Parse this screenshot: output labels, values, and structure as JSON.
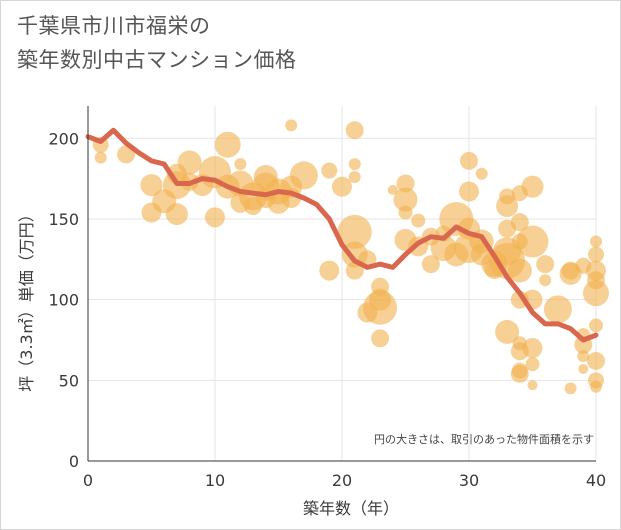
{
  "title_line1": "千葉県市川市福栄の",
  "title_line2": "築年数別中古マンション価格",
  "chart_data": {
    "type": "scatter",
    "title": "千葉県市川市福栄の築年数別中古マンション価格",
    "xlabel": "築年数（年）",
    "ylabel": "坪（3.3㎡）単価（万円）",
    "note": "円の大きさは、取引のあった物件面積を示す",
    "xlim": [
      0,
      40
    ],
    "ylim": [
      0,
      220
    ],
    "xticks": [
      0,
      10,
      20,
      30,
      40
    ],
    "yticks": [
      0,
      50,
      100,
      150,
      200
    ],
    "bubble_color": "#f2b14e",
    "line_color": "#d9674e",
    "bubbles": [
      {
        "x": 1,
        "y": 196,
        "s": 8
      },
      {
        "x": 1,
        "y": 188,
        "s": 6
      },
      {
        "x": 3,
        "y": 190,
        "s": 9
      },
      {
        "x": 5,
        "y": 171,
        "s": 11
      },
      {
        "x": 5,
        "y": 154,
        "s": 10
      },
      {
        "x": 6,
        "y": 161,
        "s": 12
      },
      {
        "x": 7,
        "y": 178,
        "s": 10
      },
      {
        "x": 7,
        "y": 171,
        "s": 14
      },
      {
        "x": 7,
        "y": 153,
        "s": 11
      },
      {
        "x": 8,
        "y": 185,
        "s": 12
      },
      {
        "x": 8,
        "y": 173,
        "s": 9
      },
      {
        "x": 9,
        "y": 171,
        "s": 11
      },
      {
        "x": 10,
        "y": 179,
        "s": 16
      },
      {
        "x": 10,
        "y": 151,
        "s": 10
      },
      {
        "x": 11,
        "y": 196,
        "s": 13
      },
      {
        "x": 11,
        "y": 170,
        "s": 12
      },
      {
        "x": 12,
        "y": 184,
        "s": 6
      },
      {
        "x": 12,
        "y": 172,
        "s": 13
      },
      {
        "x": 12,
        "y": 160,
        "s": 10
      },
      {
        "x": 13,
        "y": 164,
        "s": 14
      },
      {
        "x": 13,
        "y": 158,
        "s": 9
      },
      {
        "x": 14,
        "y": 176,
        "s": 12
      },
      {
        "x": 14,
        "y": 170,
        "s": 14
      },
      {
        "x": 14,
        "y": 163,
        "s": 10
      },
      {
        "x": 15,
        "y": 167,
        "s": 13
      },
      {
        "x": 15,
        "y": 160,
        "s": 11
      },
      {
        "x": 16,
        "y": 208,
        "s": 6
      },
      {
        "x": 16,
        "y": 170,
        "s": 11
      },
      {
        "x": 16,
        "y": 163,
        "s": 10
      },
      {
        "x": 17,
        "y": 177,
        "s": 14
      },
      {
        "x": 19,
        "y": 180,
        "s": 8
      },
      {
        "x": 19,
        "y": 118,
        "s": 10
      },
      {
        "x": 20,
        "y": 170,
        "s": 10
      },
      {
        "x": 21,
        "y": 205,
        "s": 9
      },
      {
        "x": 21,
        "y": 184,
        "s": 6
      },
      {
        "x": 21,
        "y": 176,
        "s": 6
      },
      {
        "x": 21,
        "y": 142,
        "s": 17
      },
      {
        "x": 21,
        "y": 128,
        "s": 13
      },
      {
        "x": 21,
        "y": 118,
        "s": 9
      },
      {
        "x": 22,
        "y": 125,
        "s": 9
      },
      {
        "x": 22,
        "y": 92,
        "s": 10
      },
      {
        "x": 23,
        "y": 108,
        "s": 9
      },
      {
        "x": 23,
        "y": 100,
        "s": 11
      },
      {
        "x": 23,
        "y": 95,
        "s": 17
      },
      {
        "x": 23,
        "y": 76,
        "s": 9
      },
      {
        "x": 24,
        "y": 168,
        "s": 5
      },
      {
        "x": 25,
        "y": 172,
        "s": 9
      },
      {
        "x": 25,
        "y": 162,
        "s": 12
      },
      {
        "x": 25,
        "y": 154,
        "s": 7
      },
      {
        "x": 25,
        "y": 137,
        "s": 11
      },
      {
        "x": 26,
        "y": 149,
        "s": 7
      },
      {
        "x": 26,
        "y": 133,
        "s": 10
      },
      {
        "x": 27,
        "y": 139,
        "s": 9
      },
      {
        "x": 27,
        "y": 122,
        "s": 9
      },
      {
        "x": 28,
        "y": 141,
        "s": 8
      },
      {
        "x": 28,
        "y": 132,
        "s": 13
      },
      {
        "x": 29,
        "y": 150,
        "s": 17
      },
      {
        "x": 29,
        "y": 128,
        "s": 12
      },
      {
        "x": 30,
        "y": 186,
        "s": 9
      },
      {
        "x": 30,
        "y": 167,
        "s": 10
      },
      {
        "x": 30,
        "y": 144,
        "s": 11
      },
      {
        "x": 30,
        "y": 132,
        "s": 15
      },
      {
        "x": 31,
        "y": 178,
        "s": 6
      },
      {
        "x": 31,
        "y": 136,
        "s": 12
      },
      {
        "x": 31,
        "y": 128,
        "s": 11
      },
      {
        "x": 32,
        "y": 122,
        "s": 13
      },
      {
        "x": 32,
        "y": 119,
        "s": 10
      },
      {
        "x": 33,
        "y": 164,
        "s": 8
      },
      {
        "x": 33,
        "y": 158,
        "s": 11
      },
      {
        "x": 33,
        "y": 144,
        "s": 9
      },
      {
        "x": 33,
        "y": 130,
        "s": 14
      },
      {
        "x": 33,
        "y": 124,
        "s": 18
      },
      {
        "x": 33,
        "y": 80,
        "s": 12
      },
      {
        "x": 34,
        "y": 166,
        "s": 8
      },
      {
        "x": 34,
        "y": 148,
        "s": 9
      },
      {
        "x": 34,
        "y": 136,
        "s": 8
      },
      {
        "x": 34,
        "y": 118,
        "s": 12
      },
      {
        "x": 34,
        "y": 100,
        "s": 9
      },
      {
        "x": 34,
        "y": 73,
        "s": 7
      },
      {
        "x": 34,
        "y": 68,
        "s": 9
      },
      {
        "x": 34,
        "y": 56,
        "s": 8
      },
      {
        "x": 34,
        "y": 54,
        "s": 9
      },
      {
        "x": 35,
        "y": 170,
        "s": 11
      },
      {
        "x": 35,
        "y": 136,
        "s": 16
      },
      {
        "x": 35,
        "y": 100,
        "s": 10
      },
      {
        "x": 35,
        "y": 70,
        "s": 10
      },
      {
        "x": 35,
        "y": 60,
        "s": 7
      },
      {
        "x": 35,
        "y": 47,
        "s": 5
      },
      {
        "x": 36,
        "y": 122,
        "s": 9
      },
      {
        "x": 36,
        "y": 112,
        "s": 6
      },
      {
        "x": 37,
        "y": 94,
        "s": 14
      },
      {
        "x": 38,
        "y": 118,
        "s": 9
      },
      {
        "x": 38,
        "y": 116,
        "s": 11
      },
      {
        "x": 38,
        "y": 45,
        "s": 6
      },
      {
        "x": 39,
        "y": 121,
        "s": 8
      },
      {
        "x": 39,
        "y": 78,
        "s": 7
      },
      {
        "x": 39,
        "y": 72,
        "s": 9
      },
      {
        "x": 39,
        "y": 65,
        "s": 6
      },
      {
        "x": 39,
        "y": 57,
        "s": 5
      },
      {
        "x": 40,
        "y": 136,
        "s": 6
      },
      {
        "x": 40,
        "y": 128,
        "s": 8
      },
      {
        "x": 40,
        "y": 118,
        "s": 10
      },
      {
        "x": 40,
        "y": 112,
        "s": 9
      },
      {
        "x": 40,
        "y": 104,
        "s": 13
      },
      {
        "x": 40,
        "y": 84,
        "s": 7
      },
      {
        "x": 40,
        "y": 62,
        "s": 9
      },
      {
        "x": 40,
        "y": 50,
        "s": 8
      },
      {
        "x": 40,
        "y": 46,
        "s": 6
      }
    ],
    "trend": {
      "x": [
        0,
        1,
        2,
        3,
        4,
        5,
        6,
        7,
        8,
        9,
        10,
        11,
        12,
        13,
        14,
        15,
        16,
        17,
        18,
        19,
        20,
        21,
        22,
        23,
        24,
        25,
        26,
        27,
        28,
        29,
        30,
        31,
        32,
        33,
        34,
        35,
        36,
        37,
        38,
        39,
        40
      ],
      "y": [
        201,
        198,
        205,
        197,
        191,
        186,
        184,
        172,
        172,
        175,
        174,
        170,
        167,
        166,
        165,
        167,
        166,
        163,
        159,
        150,
        134,
        124,
        120,
        122,
        120,
        128,
        135,
        139,
        138,
        145,
        141,
        139,
        127,
        114,
        104,
        92,
        85,
        85,
        82,
        75,
        78
      ]
    }
  }
}
